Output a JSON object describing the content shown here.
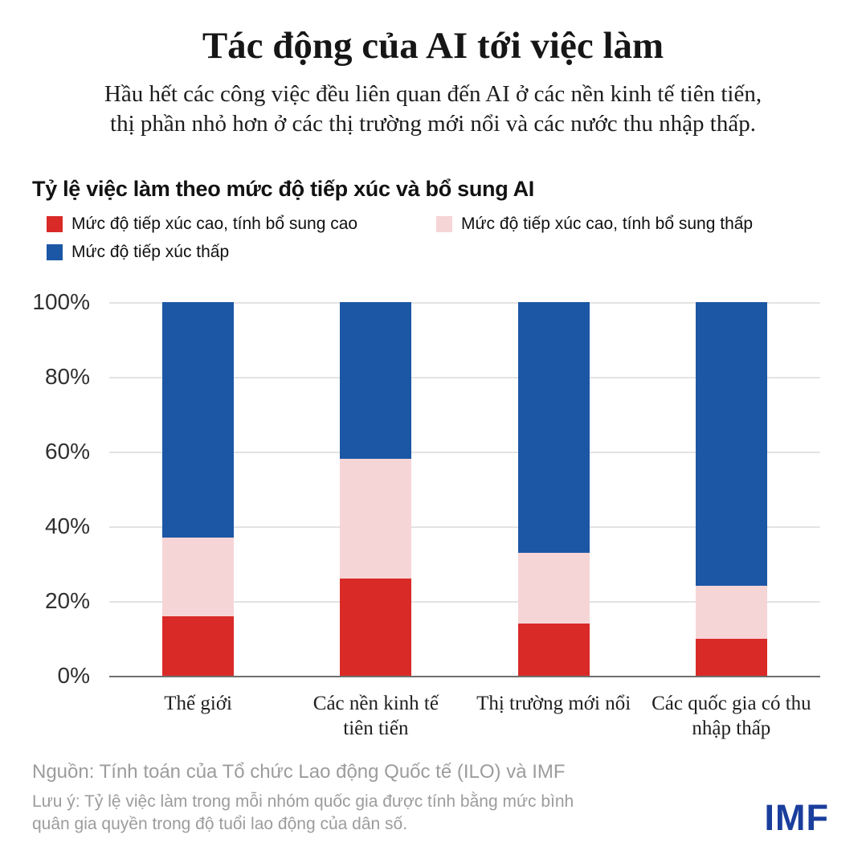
{
  "header": {
    "title": "Tác động của AI tới việc làm",
    "subtitle_line1": "Hầu hết các công việc đều liên quan đến AI ở các nền kinh tế tiên tiến,",
    "subtitle_line2": "thị phần nhỏ hơn ở các thị trường mới nổi và các nước thu nhập thấp."
  },
  "chart_data": {
    "type": "bar",
    "stacked": true,
    "percent": true,
    "title": "Tỷ lệ việc làm theo mức độ tiếp xúc và bổ sung AI",
    "categories": [
      "Thế giới",
      "Các nền kinh tế\ntiên tiến",
      "Thị trường mới nổi",
      "Các quốc gia có thu\nnhập thấp"
    ],
    "series": [
      {
        "name": "Mức độ tiếp xúc cao, tính bổ sung cao",
        "color": "#d92a28",
        "values": [
          16,
          26,
          14,
          10
        ]
      },
      {
        "name": "Mức độ tiếp xúc cao, tính bổ sung thấp",
        "color": "#f6d5d7",
        "values": [
          21,
          32,
          19,
          14
        ]
      },
      {
        "name": "Mức độ tiếp xúc thấp",
        "color": "#1c57a5",
        "values": [
          63,
          42,
          67,
          76
        ]
      }
    ],
    "yticks": [
      "100%",
      "80%",
      "60%",
      "40%",
      "20%",
      "0%"
    ],
    "ylim": [
      0,
      100
    ],
    "grid": true,
    "legend_position": "top-left"
  },
  "footer": {
    "source": "Nguồn: Tính toán của Tổ chức Lao động Quốc tế (ILO) và IMF",
    "note": "Lưu ý: Tỷ lệ việc làm trong mỗi nhóm quốc gia được tính bằng mức bình quân gia quyền trong độ tuổi lao động của dân số.",
    "logo": "IMF"
  },
  "colors": {
    "high_exposure_high_complementarity": "#d92a28",
    "high_exposure_low_complementarity": "#f6d5d7",
    "low_exposure": "#1c57a5",
    "imf_logo": "#1a3e9c",
    "gridline": "#e3e3e3",
    "axis": "#6e6e6e"
  }
}
